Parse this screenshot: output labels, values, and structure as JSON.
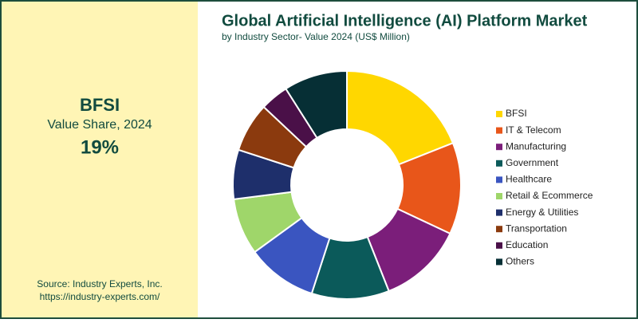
{
  "chart_data": {
    "type": "donut",
    "title": "Global Artificial Intelligence (AI) Platform Market",
    "subtitle": "by Industry Sector- Value 2024 (US$ Million)",
    "highlight": {
      "category": "BFSI",
      "caption": "Value Share, 2024",
      "value": 19,
      "value_label": "19%"
    },
    "source": "Source: Industry Experts, Inc.",
    "url": "https://industry-experts.com/",
    "categories": [
      "BFSI",
      "IT & Telecom",
      "Manufacturing",
      "Government",
      "Healthcare",
      "Retail & Ecommerce",
      "Energy & Utilities",
      "Transportation",
      "Education",
      "Others"
    ],
    "values": [
      19,
      13,
      12,
      11,
      10,
      8,
      7,
      7,
      4,
      9
    ],
    "colors": [
      "#ffd700",
      "#e8561a",
      "#7b1e7a",
      "#0b5a5a",
      "#3a55c0",
      "#9fd66a",
      "#1e2f6b",
      "#8b3a0e",
      "#4a1048",
      "#062f35"
    ]
  }
}
